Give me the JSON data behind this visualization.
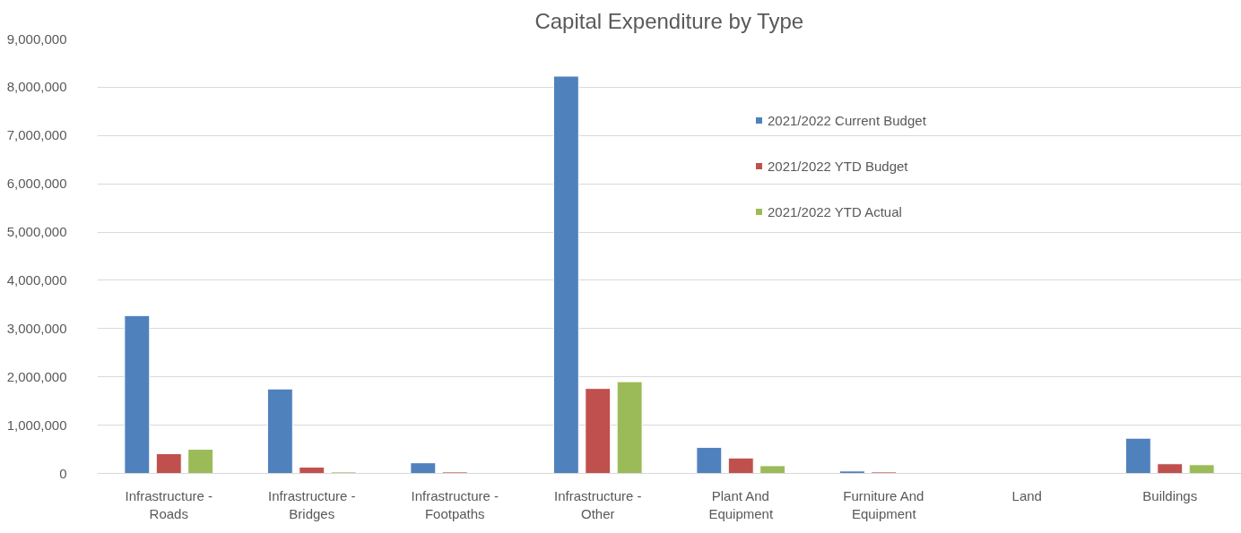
{
  "chart_data": {
    "type": "bar",
    "title": "Capital Expenditure by Type",
    "categories": [
      "Infrastructure - Roads",
      "Infrastructure - Bridges",
      "Infrastructure - Footpaths",
      "Infrastructure - Other",
      "Plant And Equipment",
      "Furniture And Equipment",
      "Land",
      "Buildings"
    ],
    "series": [
      {
        "name": "2021/2022 Current Budget",
        "color": "#4f81bd",
        "values": [
          3270000,
          1750000,
          220000,
          8230000,
          540000,
          50000,
          null,
          730000
        ]
      },
      {
        "name": "2021/2022 YTD Budget",
        "color": "#c0504d",
        "values": [
          410000,
          130000,
          30000,
          1760000,
          320000,
          30000,
          null,
          200000
        ]
      },
      {
        "name": "2021/2022 YTD Actual",
        "color": "#9bbb59",
        "values": [
          500000,
          30000,
          null,
          1900000,
          160000,
          null,
          null,
          180000
        ]
      }
    ],
    "ylim": [
      0,
      9000000
    ],
    "yticks": [
      0,
      {
        "value": 1000000,
        "label": "1,000,000"
      },
      {
        "value": 2000000,
        "label": "2,000,000"
      },
      {
        "value": 3000000,
        "label": "3,000,000"
      },
      {
        "value": 4000000,
        "label": "4,000,000"
      },
      {
        "value": 5000000,
        "label": "5,000,000"
      },
      {
        "value": 6000000,
        "label": "6,000,000"
      },
      {
        "value": 7000000,
        "label": "7,000,000"
      },
      {
        "value": 8000000,
        "label": "8,000,000"
      },
      {
        "value": 9000000,
        "label": "9,000,000"
      }
    ],
    "grid": "y",
    "legend": "top right"
  }
}
